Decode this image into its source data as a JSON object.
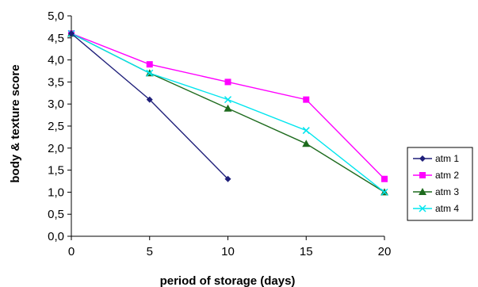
{
  "chart_data": {
    "type": "line",
    "title": "",
    "xlabel": "period of storage (days)",
    "ylabel": "body & texture score",
    "x": [
      0,
      5,
      10,
      15,
      20
    ],
    "xlim": [
      0,
      20
    ],
    "ylim": [
      0,
      5
    ],
    "x_ticks": [
      "0",
      "5",
      "10",
      "15",
      "20"
    ],
    "y_ticks": [
      "0,0",
      "0,5",
      "1,0",
      "1,5",
      "2,0",
      "2,5",
      "3,0",
      "3,5",
      "4,0",
      "4,5",
      "5,0"
    ],
    "grid": false,
    "legend_position": "right",
    "series": [
      {
        "name": "atm 1",
        "x": [
          0,
          5,
          10
        ],
        "values": [
          4.6,
          3.1,
          1.3
        ],
        "color": "#1f1f7a",
        "marker": "diamond"
      },
      {
        "name": "atm 2",
        "x": [
          0,
          5,
          10,
          15,
          20
        ],
        "values": [
          4.6,
          3.9,
          3.5,
          3.1,
          1.3
        ],
        "color": "#ff00ff",
        "marker": "square"
      },
      {
        "name": "atm 3",
        "x": [
          0,
          5,
          10,
          15,
          20
        ],
        "values": [
          4.6,
          3.7,
          2.9,
          2.1,
          1.0
        ],
        "color": "#1e6b1e",
        "marker": "triangle"
      },
      {
        "name": "atm 4",
        "x": [
          0,
          5,
          10,
          15,
          20
        ],
        "values": [
          4.6,
          3.7,
          3.1,
          2.4,
          1.0
        ],
        "color": "#00e5ee",
        "marker": "x"
      }
    ]
  }
}
